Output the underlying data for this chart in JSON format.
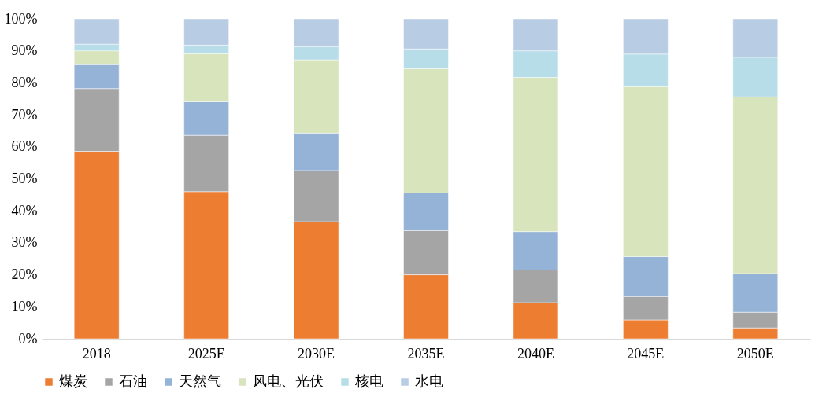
{
  "chart_data": {
    "type": "bar",
    "stacked": true,
    "categories": [
      "2018",
      "2025E",
      "2030E",
      "2035E",
      "2040E",
      "2045E",
      "2050E"
    ],
    "series": [
      {
        "name": "煤炭",
        "color": "#ed7d31",
        "values": [
          58.6,
          46.0,
          36.6,
          20.0,
          11.3,
          5.9,
          3.4
        ]
      },
      {
        "name": "石油",
        "color": "#a5a5a5",
        "values": [
          19.6,
          17.6,
          16.0,
          13.8,
          10.2,
          7.3,
          4.9
        ]
      },
      {
        "name": "天然气",
        "color": "#95b3d7",
        "values": [
          7.5,
          10.5,
          11.7,
          11.8,
          12.0,
          12.5,
          12.1
        ]
      },
      {
        "name": "风电、光伏",
        "color": "#d8e4bc",
        "values": [
          4.3,
          15.0,
          22.9,
          38.8,
          48.2,
          53.1,
          55.2
        ]
      },
      {
        "name": "核电",
        "color": "#b7dde8",
        "values": [
          2.1,
          2.7,
          4.1,
          6.2,
          8.3,
          10.2,
          12.4
        ]
      },
      {
        "name": "水电",
        "color": "#b8cce4",
        "values": [
          7.9,
          8.2,
          8.7,
          9.4,
          10.0,
          11.0,
          12.0
        ]
      }
    ],
    "ylim": [
      0,
      100
    ],
    "yticks": [
      {
        "value": 0,
        "label": "0%"
      },
      {
        "value": 10,
        "label": "10%"
      },
      {
        "value": 20,
        "label": "20%"
      },
      {
        "value": 30,
        "label": "30%"
      },
      {
        "value": 40,
        "label": "40%"
      },
      {
        "value": 50,
        "label": "50%"
      },
      {
        "value": 60,
        "label": "60%"
      },
      {
        "value": 70,
        "label": "70%"
      },
      {
        "value": 80,
        "label": "80%"
      },
      {
        "value": 90,
        "label": "90%"
      },
      {
        "value": 100,
        "label": "100%"
      }
    ],
    "grid": false,
    "legend": "bottom"
  }
}
